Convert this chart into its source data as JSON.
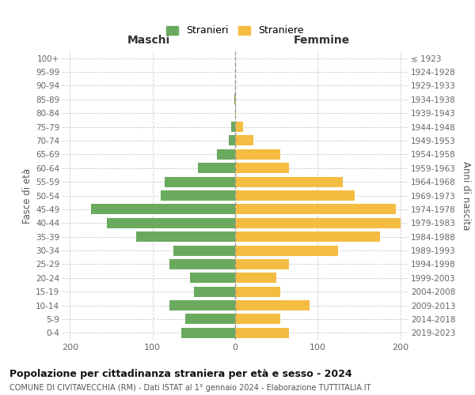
{
  "age_groups_bottom_to_top": [
    "0-4",
    "5-9",
    "10-14",
    "15-19",
    "20-24",
    "25-29",
    "30-34",
    "35-39",
    "40-44",
    "45-49",
    "50-54",
    "55-59",
    "60-64",
    "65-69",
    "70-74",
    "75-79",
    "80-84",
    "85-89",
    "90-94",
    "95-99",
    "100+"
  ],
  "birth_years_bottom_to_top": [
    "2019-2023",
    "2014-2018",
    "2009-2013",
    "2004-2008",
    "1999-2003",
    "1994-1998",
    "1989-1993",
    "1984-1988",
    "1979-1983",
    "1974-1978",
    "1969-1973",
    "1964-1968",
    "1959-1963",
    "1954-1958",
    "1949-1953",
    "1944-1948",
    "1939-1943",
    "1934-1938",
    "1929-1933",
    "1924-1928",
    "≤ 1923"
  ],
  "maschi_bottom_to_top": [
    65,
    60,
    80,
    50,
    55,
    80,
    75,
    120,
    155,
    175,
    90,
    85,
    45,
    22,
    8,
    5,
    0,
    1,
    0,
    0,
    0
  ],
  "femmine_bottom_to_top": [
    65,
    55,
    90,
    55,
    50,
    65,
    125,
    175,
    200,
    195,
    145,
    130,
    65,
    55,
    22,
    10,
    1,
    1,
    0,
    0,
    0
  ],
  "color_maschi": "#6aaa5e",
  "color_femmine": "#f5bc42",
  "title": "Popolazione per cittadinanza straniera per età e sesso - 2024",
  "subtitle": "COMUNE DI CIVITAVECCHIA (RM) - Dati ISTAT al 1° gennaio 2024 - Elaborazione TUTTITALIA.IT",
  "xlabel_left": "Maschi",
  "xlabel_right": "Femmine",
  "ylabel_left": "Fasce di età",
  "ylabel_right": "Anni di nascita",
  "legend_maschi": "Stranieri",
  "legend_femmine": "Straniere",
  "xlim": 210,
  "background_color": "#ffffff",
  "grid_color": "#cccccc"
}
